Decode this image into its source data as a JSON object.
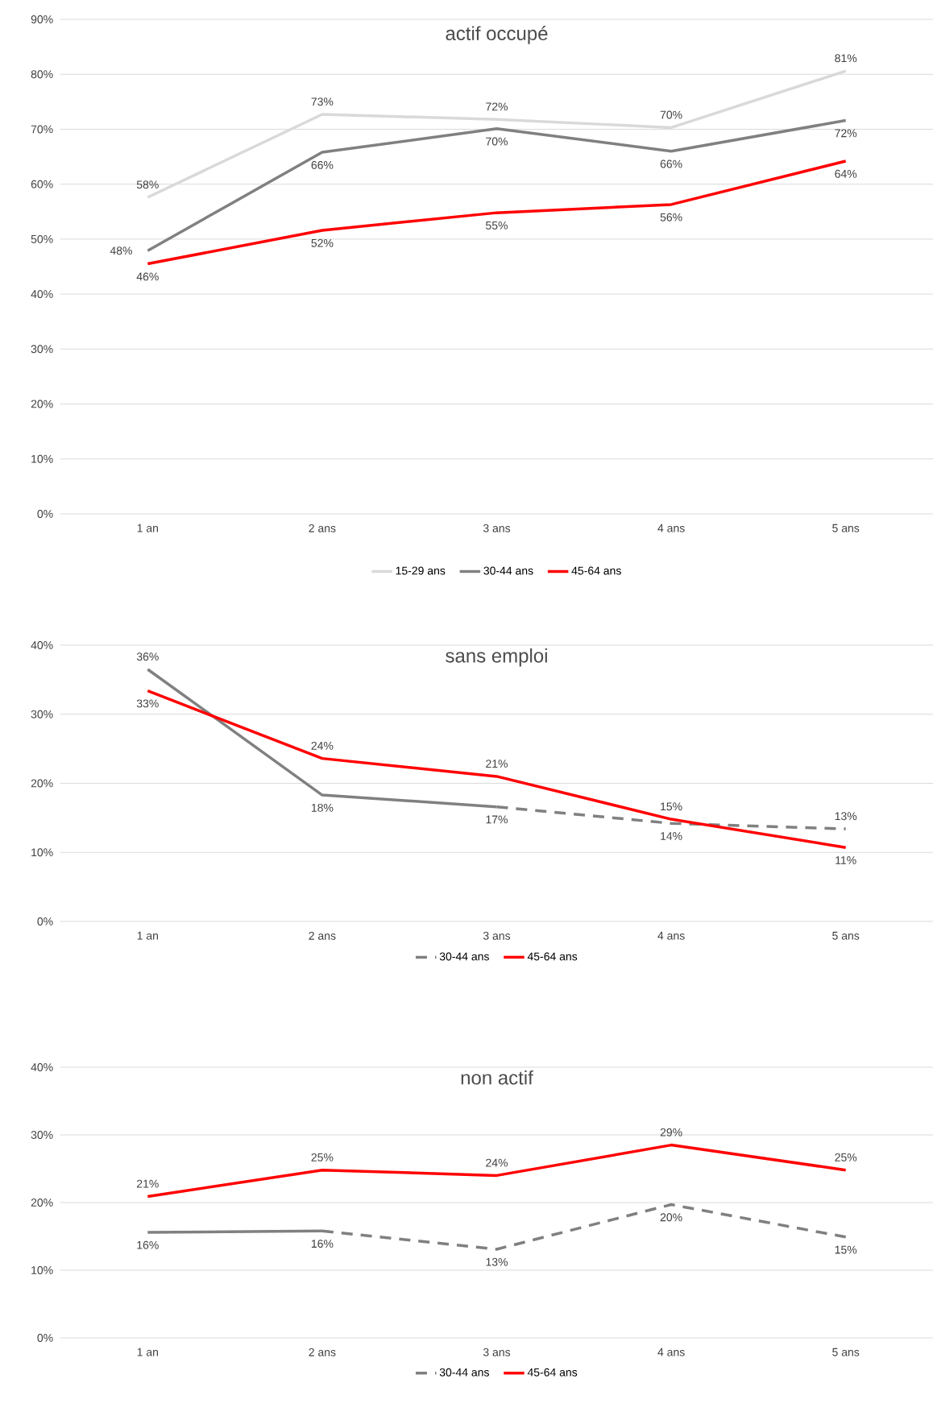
{
  "chart_data": [
    {
      "type": "line",
      "title": "actif occupé",
      "categories": [
        "1 an",
        "2 ans",
        "3 ans",
        "4 ans",
        "5 ans"
      ],
      "ylim": [
        0,
        90
      ],
      "yticks": [
        {
          "value": 0,
          "label": "0%"
        },
        {
          "value": 10,
          "label": "10%"
        },
        {
          "value": 20,
          "label": "20%"
        },
        {
          "value": 30,
          "label": "30%"
        },
        {
          "value": 40,
          "label": "40%"
        },
        {
          "value": 50,
          "label": "50%"
        },
        {
          "value": 60,
          "label": "60%"
        },
        {
          "value": 70,
          "label": "70%"
        },
        {
          "value": 80,
          "label": "80%"
        },
        {
          "value": 90,
          "label": "90%"
        }
      ],
      "grid": "y",
      "legend": "bottom",
      "series": [
        {
          "name": "15-29 ans",
          "color": "#d9d9d9",
          "values": [
            57.6,
            72.7,
            71.8,
            70.3,
            80.6
          ],
          "value_labels": [
            "58%",
            "73%",
            "72%",
            "70%",
            "81%"
          ]
        },
        {
          "name": "30-44 ans",
          "color": "#808080",
          "values": [
            47.9,
            65.8,
            70.1,
            66.0,
            71.6
          ],
          "value_labels": [
            "48%",
            "66%",
            "70%",
            "66%",
            "72%"
          ]
        },
        {
          "name": "45-64 ans",
          "color": "#ff0000",
          "values": [
            45.5,
            51.6,
            54.8,
            56.3,
            64.2
          ],
          "value_labels": [
            "46%",
            "52%",
            "55%",
            "56%",
            "64%"
          ]
        }
      ]
    },
    {
      "type": "line",
      "title": "sans emploi",
      "categories": [
        "1 an",
        "2 ans",
        "3 ans",
        "4 ans",
        "5 ans"
      ],
      "ylim": [
        0,
        40
      ],
      "yticks": [
        {
          "value": 0,
          "label": "0%"
        },
        {
          "value": 10,
          "label": "10%"
        },
        {
          "value": 20,
          "label": "20%"
        },
        {
          "value": 30,
          "label": "30%"
        },
        {
          "value": 40,
          "label": "40%"
        }
      ],
      "grid": "y",
      "legend": "bottom",
      "series": [
        {
          "color": "#808080",
          "values": [
            36.5,
            18.3,
            16.6,
            null,
            null
          ],
          "value_labels": [
            "36%",
            "18%",
            "17%",
            null,
            null
          ]
        },
        {
          "name": "30-44 ans",
          "color": "#808080",
          "line_style": "dashed",
          "values": [
            null,
            null,
            16.6,
            14.2,
            13.4
          ],
          "value_labels": [
            null,
            null,
            null,
            "14%",
            "13%"
          ]
        },
        {
          "name": "45-64 ans",
          "color": "#ff0000",
          "values": [
            33.4,
            23.6,
            21.0,
            14.8,
            10.7
          ],
          "value_labels": [
            "33%",
            "24%",
            "21%",
            "15%",
            "11%"
          ]
        }
      ]
    },
    {
      "type": "line",
      "title": "non actif",
      "categories": [
        "1 an",
        "2 ans",
        "3 ans",
        "4 ans",
        "5 ans"
      ],
      "ylim": [
        0,
        40
      ],
      "yticks": [
        {
          "value": 0,
          "label": "0%"
        },
        {
          "value": 10,
          "label": "10%"
        },
        {
          "value": 20,
          "label": "20%"
        },
        {
          "value": 30,
          "label": "30%"
        },
        {
          "value": 40,
          "label": "40%"
        }
      ],
      "grid": "y",
      "legend": "bottom",
      "series": [
        {
          "color": "#808080",
          "values": [
            15.6,
            15.8,
            null,
            null,
            null
          ],
          "value_labels": [
            "16%",
            "16%",
            null,
            null,
            null
          ]
        },
        {
          "name": "30-44 ans",
          "color": "#808080",
          "line_style": "dashed",
          "values": [
            null,
            15.8,
            13.1,
            19.7,
            14.9
          ],
          "value_labels": [
            null,
            null,
            "13%",
            "20%",
            "15%"
          ]
        },
        {
          "name": "45-64 ans",
          "color": "#ff0000",
          "values": [
            20.9,
            24.8,
            24.0,
            28.5,
            24.8
          ],
          "value_labels": [
            "21%",
            "25%",
            "24%",
            "29%",
            "25%"
          ]
        }
      ]
    }
  ]
}
